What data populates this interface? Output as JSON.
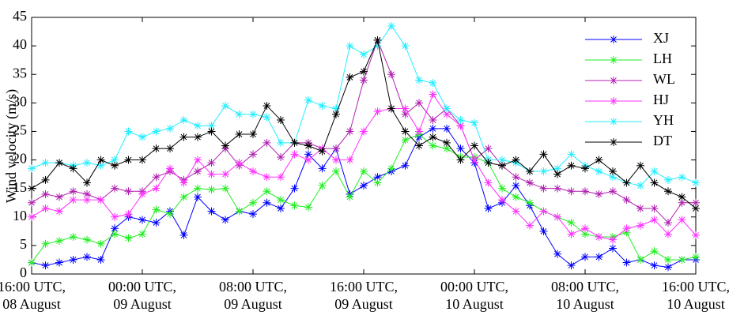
{
  "chart_data": {
    "type": "line",
    "y_label": "Wind velocity (m/s)",
    "categories": [
      "16:00 UTC,\n08 August",
      null,
      null,
      null,
      null,
      null,
      null,
      null,
      "00:00 UTC,\n09 August",
      null,
      null,
      null,
      null,
      null,
      null,
      null,
      "08:00 UTC,\n09 August",
      null,
      null,
      null,
      null,
      null,
      null,
      null,
      "16:00 UTC,\n09 August",
      null,
      null,
      null,
      null,
      null,
      null,
      null,
      "00:00 UTC,\n10 August",
      null,
      null,
      null,
      null,
      null,
      null,
      null,
      "08:00 UTC,\n10 August",
      null,
      null,
      null,
      null,
      null,
      null,
      null,
      "16:00 UTC,\n10 August"
    ],
    "ylim": [
      0,
      45
    ],
    "yticks": [
      0,
      5,
      10,
      15,
      20,
      25,
      30,
      35,
      40,
      45
    ],
    "legend": "northeast",
    "series": [
      {
        "name": "XJ",
        "color": "#0000ff",
        "values": [
          2,
          1.5,
          2,
          2.5,
          3,
          2.5,
          8,
          10,
          9.5,
          9,
          11,
          6.8,
          13.5,
          11,
          9.5,
          11,
          10.5,
          12.5,
          11.5,
          15,
          21,
          18.5,
          22,
          14,
          15.5,
          17,
          18,
          19,
          24,
          25.5,
          25.5,
          22,
          19.5,
          11.5,
          12.5,
          15.5,
          12,
          7.5,
          3.5,
          1.5,
          3,
          3,
          4.5,
          2,
          2.5,
          1.5,
          1.2,
          2.5,
          2.5
        ]
      },
      {
        "name": "LH",
        "color": "#22ee22",
        "values": [
          2,
          5.3,
          5.8,
          6.5,
          6,
          5.3,
          7,
          6.3,
          7,
          11.3,
          10.5,
          13.5,
          15,
          14.8,
          15,
          11,
          12.5,
          14.5,
          13,
          12,
          11.7,
          15.5,
          18,
          13.5,
          18,
          16,
          18.5,
          23.5,
          24.5,
          22.5,
          22,
          20.5,
          20.5,
          19.5,
          15,
          13.5,
          12.5,
          11,
          10,
          9,
          7,
          6.5,
          6.5,
          7.3,
          2.5,
          4,
          2.5,
          2.5,
          3
        ]
      },
      {
        "name": "WL",
        "color": "#b020b0",
        "values": [
          12.5,
          14,
          13.5,
          14.5,
          14,
          13,
          15,
          14.5,
          14.5,
          17,
          18,
          16.5,
          18,
          19.5,
          22,
          19,
          21,
          23,
          20.5,
          23,
          23,
          22,
          22,
          25,
          34,
          41,
          35,
          28,
          30,
          27,
          29,
          26,
          20,
          22,
          19,
          17,
          16,
          15,
          15,
          14.5,
          14.5,
          14,
          14.5,
          13,
          11.5,
          11.5,
          9,
          12.5,
          12.5
        ]
      },
      {
        "name": "HJ",
        "color": "#ff30ff",
        "values": [
          10,
          11.5,
          11,
          13,
          13,
          13,
          10,
          10.5,
          14,
          15,
          18.5,
          16,
          20,
          17.5,
          17.5,
          19.5,
          18,
          17,
          17,
          21,
          20,
          22,
          20,
          20,
          25,
          28.5,
          29,
          29,
          25,
          31.5,
          28,
          26,
          20,
          16,
          13,
          11,
          8.5,
          11,
          10,
          7,
          8,
          6.5,
          6,
          8,
          8.5,
          9.5,
          7,
          9.5,
          6.8
        ]
      },
      {
        "name": "YH",
        "color": "#22eeff",
        "values": [
          18.5,
          19.5,
          19.5,
          19,
          19.5,
          19,
          20,
          25,
          24,
          25,
          25.5,
          27,
          26,
          26,
          29.5,
          28,
          28,
          27.5,
          23,
          23,
          30.5,
          29.5,
          29,
          40,
          38.5,
          40,
          43.5,
          40,
          34,
          33.5,
          29,
          27,
          26.5,
          20,
          20,
          19.5,
          18,
          18,
          18.5,
          21,
          19,
          18,
          17,
          16,
          15.5,
          18,
          16.5,
          17,
          16
        ]
      },
      {
        "name": "DT",
        "color": "#000000",
        "values": [
          15,
          16.5,
          19.5,
          18.5,
          16,
          20,
          19,
          20,
          20,
          22,
          22,
          24,
          24,
          25,
          22.5,
          24.5,
          24.5,
          29.5,
          27,
          23,
          22.5,
          21.5,
          28,
          34.5,
          35.5,
          41,
          29,
          25,
          22.5,
          24,
          23,
          20,
          22.5,
          19.5,
          19,
          20,
          18,
          21,
          17.5,
          19,
          18.5,
          20,
          18,
          16,
          19,
          16,
          14.5,
          13.5,
          11.5
        ]
      }
    ]
  }
}
